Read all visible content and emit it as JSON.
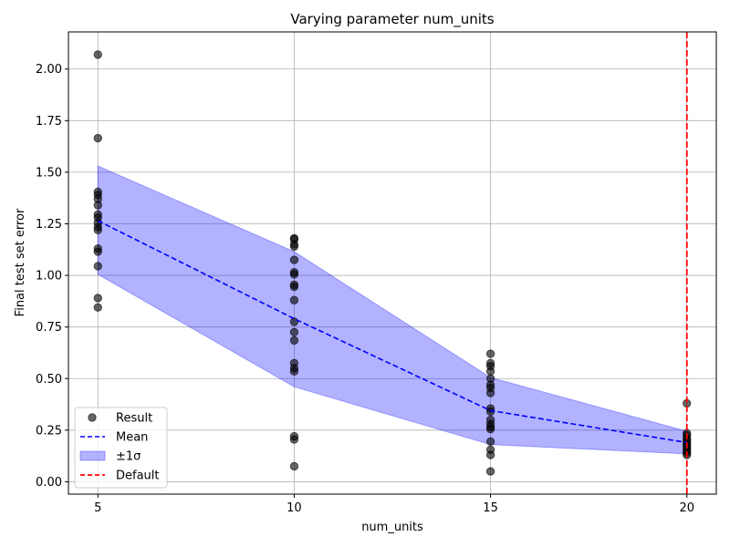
{
  "chart_data": {
    "type": "scatter",
    "title": "Varying parameter num_units",
    "xlabel": "num_units",
    "ylabel": "Final test set error",
    "xlim": [
      4.25,
      20.75
    ],
    "ylim": [
      -0.06,
      2.18
    ],
    "xticks": [
      5,
      10,
      15,
      20
    ],
    "xtick_labels": [
      "5",
      "10",
      "15",
      "20"
    ],
    "yticks": [
      0.0,
      0.25,
      0.5,
      0.75,
      1.0,
      1.25,
      1.5,
      1.75,
      2.0
    ],
    "ytick_labels": [
      "0.00",
      "0.25",
      "0.50",
      "0.75",
      "1.00",
      "1.25",
      "1.50",
      "1.75",
      "2.00"
    ],
    "grid": true,
    "legend_position": "lower-left",
    "series": [
      {
        "name": "Result",
        "kind": "points",
        "color": "#000000",
        "points": [
          {
            "x": 5,
            "y": 2.07
          },
          {
            "x": 5,
            "y": 1.665
          },
          {
            "x": 5,
            "y": 1.405
          },
          {
            "x": 5,
            "y": 1.39
          },
          {
            "x": 5,
            "y": 1.37
          },
          {
            "x": 5,
            "y": 1.34
          },
          {
            "x": 5,
            "y": 1.295
          },
          {
            "x": 5,
            "y": 1.28
          },
          {
            "x": 5,
            "y": 1.255
          },
          {
            "x": 5,
            "y": 1.235
          },
          {
            "x": 5,
            "y": 1.22
          },
          {
            "x": 5,
            "y": 1.13
          },
          {
            "x": 5,
            "y": 1.115
          },
          {
            "x": 5,
            "y": 1.045
          },
          {
            "x": 5,
            "y": 0.89
          },
          {
            "x": 5,
            "y": 0.845
          },
          {
            "x": 10,
            "y": 1.18
          },
          {
            "x": 10,
            "y": 1.175
          },
          {
            "x": 10,
            "y": 1.15
          },
          {
            "x": 10,
            "y": 1.14
          },
          {
            "x": 10,
            "y": 1.075
          },
          {
            "x": 10,
            "y": 1.015
          },
          {
            "x": 10,
            "y": 1.005
          },
          {
            "x": 10,
            "y": 0.955
          },
          {
            "x": 10,
            "y": 0.945
          },
          {
            "x": 10,
            "y": 0.88
          },
          {
            "x": 10,
            "y": 0.775
          },
          {
            "x": 10,
            "y": 0.725
          },
          {
            "x": 10,
            "y": 0.685
          },
          {
            "x": 10,
            "y": 0.575
          },
          {
            "x": 10,
            "y": 0.55
          },
          {
            "x": 10,
            "y": 0.535
          },
          {
            "x": 10,
            "y": 0.22
          },
          {
            "x": 10,
            "y": 0.205
          },
          {
            "x": 10,
            "y": 0.075
          },
          {
            "x": 15,
            "y": 0.62
          },
          {
            "x": 15,
            "y": 0.575
          },
          {
            "x": 15,
            "y": 0.56
          },
          {
            "x": 15,
            "y": 0.535
          },
          {
            "x": 15,
            "y": 0.5
          },
          {
            "x": 15,
            "y": 0.47
          },
          {
            "x": 15,
            "y": 0.455
          },
          {
            "x": 15,
            "y": 0.43
          },
          {
            "x": 15,
            "y": 0.355
          },
          {
            "x": 15,
            "y": 0.34
          },
          {
            "x": 15,
            "y": 0.3
          },
          {
            "x": 15,
            "y": 0.28
          },
          {
            "x": 15,
            "y": 0.265
          },
          {
            "x": 15,
            "y": 0.255
          },
          {
            "x": 15,
            "y": 0.195
          },
          {
            "x": 15,
            "y": 0.155
          },
          {
            "x": 15,
            "y": 0.13
          },
          {
            "x": 15,
            "y": 0.05
          },
          {
            "x": 20,
            "y": 0.38
          },
          {
            "x": 20,
            "y": 0.235
          },
          {
            "x": 20,
            "y": 0.225
          },
          {
            "x": 20,
            "y": 0.21
          },
          {
            "x": 20,
            "y": 0.2
          },
          {
            "x": 20,
            "y": 0.19
          },
          {
            "x": 20,
            "y": 0.18
          },
          {
            "x": 20,
            "y": 0.17
          },
          {
            "x": 20,
            "y": 0.16
          },
          {
            "x": 20,
            "y": 0.15
          },
          {
            "x": 20,
            "y": 0.14
          },
          {
            "x": 20,
            "y": 0.13
          }
        ]
      },
      {
        "name": "Mean",
        "kind": "line",
        "style": "dashed",
        "color": "#0000ff",
        "x": [
          5,
          10,
          15,
          20
        ],
        "y": [
          1.265,
          0.79,
          0.345,
          0.19
        ]
      },
      {
        "name": "±1σ",
        "kind": "band",
        "color": "#0000ff",
        "x": [
          5,
          10,
          15,
          20
        ],
        "upper": [
          1.53,
          1.115,
          0.505,
          0.245
        ],
        "lower": [
          1.005,
          0.46,
          0.18,
          0.135
        ]
      },
      {
        "name": "Default",
        "kind": "vline",
        "style": "dashed",
        "color": "#ff0000",
        "x": 20
      }
    ]
  }
}
